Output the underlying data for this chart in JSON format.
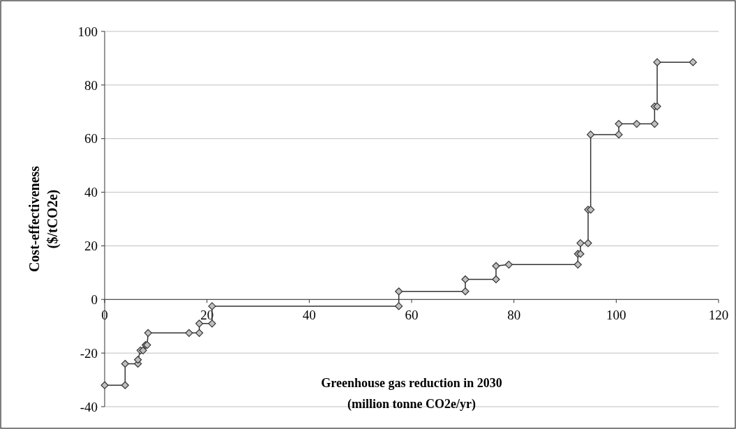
{
  "chart_data": {
    "type": "line",
    "xlabel": "Greenhouse gas reduction in 2030\n(million tonne CO2e/yr)",
    "ylabel": "Cost-effectiveness\n($/tCO2e)",
    "x": [
      0,
      4,
      4,
      6.5,
      6.5,
      7,
      7.5,
      8,
      8.3,
      8.5,
      16.5,
      18.5,
      18.5,
      21,
      21,
      57.5,
      57.5,
      70.5,
      70.5,
      76.5,
      76.5,
      79,
      92.5,
      92.5,
      93,
      93,
      94.5,
      94.5,
      95,
      95,
      100.5,
      100.5,
      104,
      107.5,
      107.5,
      108,
      108,
      115
    ],
    "series": [
      {
        "color": "#333333",
        "values": [
          -32,
          -32,
          -24,
          -24,
          -22.5,
          -19,
          -19,
          -17,
          -17,
          -12.5,
          -12.5,
          -12.5,
          -9,
          -9,
          -2.5,
          -2.5,
          3,
          3,
          7.5,
          7.5,
          12.5,
          13,
          13,
          17,
          17,
          21,
          21,
          33.5,
          33.5,
          61.5,
          61.5,
          65.5,
          65.5,
          65.5,
          72,
          72,
          88.5,
          88.5
        ]
      }
    ],
    "xlim": [
      0,
      120
    ],
    "xticks": [
      0,
      20,
      40,
      60,
      80,
      100,
      120
    ],
    "ylim": [
      -40,
      100
    ],
    "yticks": [
      -40,
      -20,
      0,
      20,
      40,
      60,
      80,
      100
    ],
    "grid": "y",
    "marker": "diamond",
    "line_style": "solid"
  }
}
